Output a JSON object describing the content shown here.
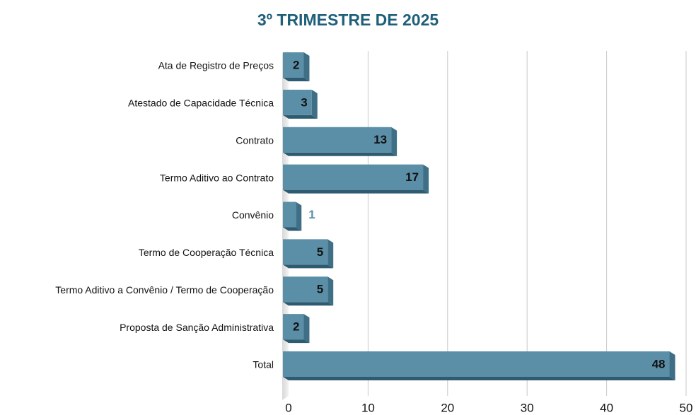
{
  "chart_data": {
    "type": "bar",
    "orientation": "horizontal",
    "title": "3º TRIMESTRE DE 2025",
    "categories": [
      "Ata de Registro de Preços",
      "Atestado de Capacidade Técnica",
      "Contrato",
      "Termo Aditivo ao Contrato",
      "Convênio",
      "Termo de Cooperação Técnica",
      "Termo Aditivo a Convênio / Termo de Cooperação",
      "Proposta de Sanção Administrativa",
      "Total"
    ],
    "values": [
      2,
      3,
      13,
      17,
      1,
      5,
      5,
      2,
      48
    ],
    "color": "#5b8fa8",
    "xlim": [
      0,
      50
    ],
    "xticks": [
      0,
      10,
      20,
      30,
      40,
      50
    ],
    "grid": true
  }
}
